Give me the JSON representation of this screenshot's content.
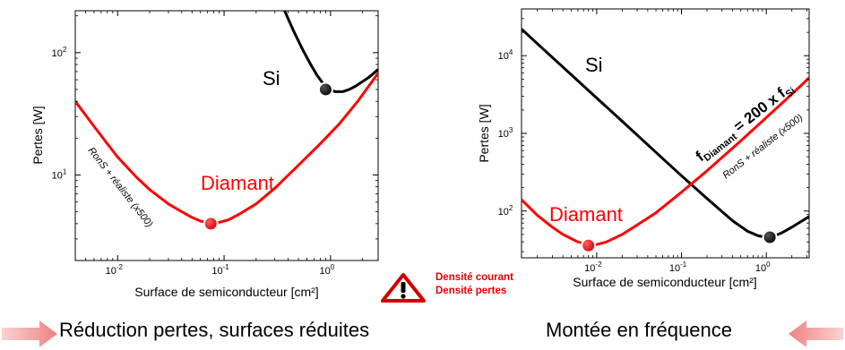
{
  "chart_data": [
    {
      "type": "line",
      "title": "",
      "xlabel": "Surface de semiconducteur [cm²]",
      "ylabel": "Pertes [W]",
      "xscale": "log",
      "yscale": "log",
      "xlim": [
        0.004,
        2.8
      ],
      "ylim": [
        2.0,
        220
      ],
      "xticks": [
        {
          "value": 0.01,
          "base": "10",
          "exp": "-2"
        },
        {
          "value": 0.1,
          "base": "10",
          "exp": "-1"
        },
        {
          "value": 1,
          "base": "10",
          "exp": "0"
        }
      ],
      "yticks": [
        {
          "value": 10,
          "base": "10",
          "exp": "1"
        },
        {
          "value": 100,
          "base": "10",
          "exp": "2"
        }
      ],
      "grid": false,
      "series": [
        {
          "name": "Si",
          "color": "#000000",
          "x": [
            0.37,
            0.45,
            0.55,
            0.65,
            0.75,
            0.85,
            0.95,
            1.1,
            1.3,
            1.5,
            1.7,
            2.0,
            2.3,
            2.6,
            2.8
          ],
          "y": [
            220,
            150,
            105,
            80,
            65,
            56,
            51,
            48,
            48,
            50,
            53,
            58,
            63,
            69,
            73
          ]
        },
        {
          "name": "Diamant",
          "color": "#ff0000",
          "x": [
            0.004,
            0.006,
            0.008,
            0.01,
            0.015,
            0.02,
            0.03,
            0.04,
            0.05,
            0.06,
            0.075,
            0.09,
            0.11,
            0.14,
            0.2,
            0.3,
            0.5,
            0.8,
            1.2,
            1.8,
            2.8
          ],
          "y": [
            40,
            25,
            18,
            14,
            9.6,
            7.6,
            5.8,
            5.0,
            4.5,
            4.2,
            4.05,
            4.1,
            4.3,
            4.8,
            5.8,
            7.8,
            12,
            18,
            26,
            40,
            68
          ]
        }
      ],
      "markers": [
        {
          "series": "Si",
          "x": 0.9,
          "y": 50
        },
        {
          "series": "Diamant",
          "x": 0.075,
          "y": 4.0
        }
      ],
      "annotations": [
        {
          "text": "Si",
          "color": "#000000"
        },
        {
          "text": "Diamant",
          "color": "#ff0000"
        },
        {
          "text": "RonS + réaliste (x500)",
          "color": "#000000"
        }
      ]
    },
    {
      "type": "line",
      "title": "",
      "xlabel": "Surface de semiconducteur [cm²]",
      "ylabel": "Pertes [W]",
      "xscale": "log",
      "yscale": "log",
      "xlim": [
        0.0013,
        3.2
      ],
      "ylim": [
        25,
        40000
      ],
      "xticks": [
        {
          "value": 0.01,
          "base": "10",
          "exp": "-2"
        },
        {
          "value": 0.1,
          "base": "10",
          "exp": "-1"
        },
        {
          "value": 1,
          "base": "10",
          "exp": "0"
        }
      ],
      "yticks": [
        {
          "value": 100,
          "base": "10",
          "exp": "2"
        },
        {
          "value": 1000,
          "base": "10",
          "exp": "3"
        },
        {
          "value": 10000,
          "base": "10",
          "exp": "4"
        }
      ],
      "grid": false,
      "series": [
        {
          "name": "Si",
          "color": "#000000",
          "x": [
            0.0013,
            0.002,
            0.005,
            0.01,
            0.02,
            0.05,
            0.1,
            0.2,
            0.4,
            0.6,
            0.8,
            1.0,
            1.2,
            1.5,
            2.0,
            2.5,
            3.2
          ],
          "y": [
            22000,
            14300,
            5700,
            2850,
            1430,
            570,
            285,
            145,
            75,
            55,
            48,
            46,
            47,
            52,
            62,
            72,
            85
          ]
        },
        {
          "name": "Diamant",
          "color": "#ff0000",
          "x": [
            0.0013,
            0.002,
            0.003,
            0.004,
            0.006,
            0.008,
            0.01,
            0.013,
            0.02,
            0.03,
            0.05,
            0.1,
            0.2,
            0.5,
            1.0,
            2.0,
            3.2
          ],
          "y": [
            140,
            88,
            62,
            50,
            40,
            37,
            37,
            40,
            50,
            66,
            95,
            175,
            330,
            800,
            1600,
            3200,
            5200
          ]
        }
      ],
      "markers": [
        {
          "series": "Si",
          "x": 1.1,
          "y": 46
        },
        {
          "series": "Diamant",
          "x": 0.008,
          "y": 36
        }
      ],
      "annotations": [
        {
          "text": "Si",
          "color": "#000000"
        },
        {
          "text": "Diamant",
          "color": "#ff0000"
        },
        {
          "text": "RonS + réaliste (x500)",
          "color": "#000000"
        },
        {
          "text": "f",
          "sub1": "Diamant",
          "mid": " = 200 x f",
          "sub2": "Si",
          "color": "#000000"
        }
      ]
    }
  ],
  "warning": {
    "icon": "warning-triangle-icon",
    "lines": [
      "Densité courant",
      "Densité pertes"
    ],
    "color": "#e00000"
  },
  "captions": {
    "left": "Réduction pertes, surfaces réduites",
    "right": "Montée en fréquence"
  },
  "colors": {
    "arrow": "#f4a0a0",
    "arrow_dark": "#ee8282",
    "warning_red": "#e00000"
  }
}
